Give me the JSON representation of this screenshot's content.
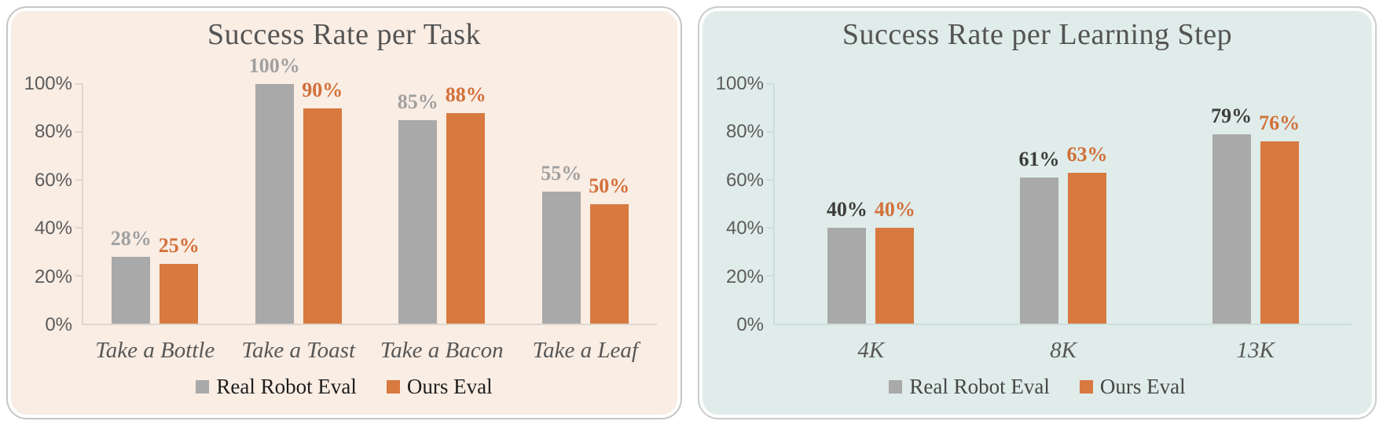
{
  "page": {
    "background": "#ffffff"
  },
  "chart_data": [
    {
      "type": "bar",
      "title": "Success Rate per Task",
      "categories": [
        "Take a Bottle",
        "Take a Toast",
        "Take a Bacon",
        "Take a Leaf"
      ],
      "series": [
        {
          "name": "Real Robot Eval",
          "color": "#a9a9a9",
          "label_color": "#a0a0a0",
          "values": [
            28,
            100,
            85,
            55
          ]
        },
        {
          "name": "Ours Eval",
          "color": "#d8793f",
          "label_color": "#d2703a",
          "values": [
            25,
            90,
            88,
            50
          ]
        }
      ],
      "data_labels": [
        [
          "28%",
          "100%",
          "85%",
          "55%"
        ],
        [
          "25%",
          "90%",
          "88%",
          "50%"
        ]
      ],
      "y_ticks": [
        "0%",
        "20%",
        "40%",
        "60%",
        "80%",
        "100%"
      ],
      "ylim": [
        0,
        100
      ],
      "xlabel": "",
      "ylabel": "",
      "grid": false,
      "legend_position": "bottom",
      "panel_bg": "#f9ede4",
      "panel_border": "#c6c6c6",
      "axis_color": "#ded7cf",
      "tick_label_color": "#5c5c5c",
      "category_label_color": "#575757",
      "title_color": "#545454",
      "legend_text_color": "#1e1e1e"
    },
    {
      "type": "bar",
      "title": "Success Rate per Learning Step",
      "categories": [
        "4K",
        "8K",
        "13K"
      ],
      "series": [
        {
          "name": "Real Robot Eval",
          "color": "#a9a9a9",
          "label_color": "#3c3c3c",
          "values": [
            40,
            61,
            79
          ]
        },
        {
          "name": "Ours Eval",
          "color": "#d8793f",
          "label_color": "#d2703a",
          "values": [
            40,
            63,
            76
          ]
        }
      ],
      "data_labels": [
        [
          "40%",
          "61%",
          "79%"
        ],
        [
          "40%",
          "63%",
          "76%"
        ]
      ],
      "y_ticks": [
        "0%",
        "20%",
        "40%",
        "60%",
        "80%",
        "100%"
      ],
      "ylim": [
        0,
        100
      ],
      "xlabel": "",
      "ylabel": "",
      "grid": false,
      "legend_position": "bottom",
      "panel_bg": "#dfecea",
      "panel_border": "#c9cdcc",
      "axis_color": "#cededb",
      "tick_label_color": "#5c5c5c",
      "category_label_color": "#575757",
      "title_color": "#545454",
      "legend_text_color": "#474747"
    }
  ]
}
